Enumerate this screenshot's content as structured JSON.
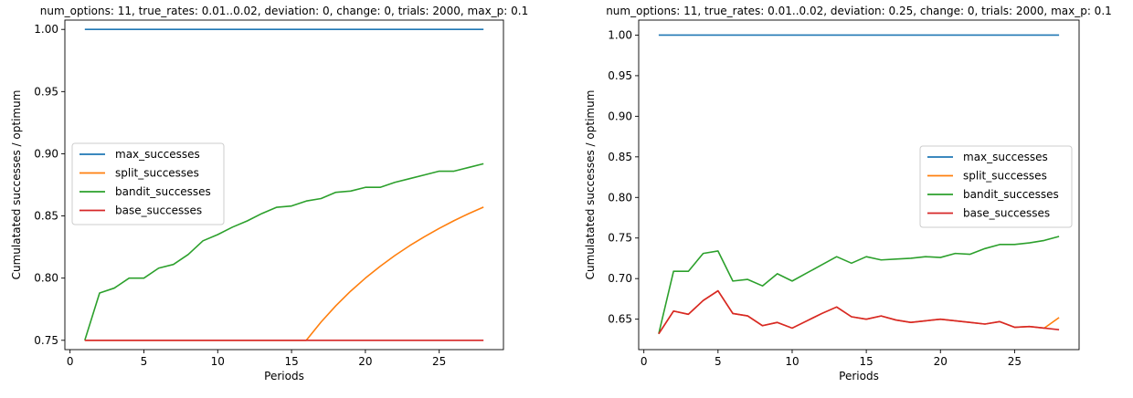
{
  "chart_data": [
    {
      "type": "line",
      "title": "num_options: 11, true_rates: 0.01..0.02, deviation: 0, change: 0, trials: 2000, max_p: 0.1",
      "xlabel": "Periods",
      "ylabel": "Cumulatated successes / optimum",
      "xlim": [
        -0.35,
        29.35
      ],
      "ylim": [
        0.7425,
        1.0075
      ],
      "xticks": [
        0,
        5,
        10,
        15,
        20,
        25
      ],
      "yticks": [
        0.75,
        0.8,
        0.85,
        0.9,
        0.95,
        1.0
      ],
      "ytick_labels": [
        "0.75",
        "0.80",
        "0.85",
        "0.90",
        "0.95",
        "1.00"
      ],
      "grid": false,
      "legend_position": "center-left",
      "x": [
        1,
        2,
        3,
        4,
        5,
        6,
        7,
        8,
        9,
        10,
        11,
        12,
        13,
        14,
        15,
        16,
        17,
        18,
        19,
        20,
        21,
        22,
        23,
        24,
        25,
        26,
        27,
        28
      ],
      "series": [
        {
          "name": "max_successes",
          "color": "#1f77b4",
          "values": [
            1,
            1,
            1,
            1,
            1,
            1,
            1,
            1,
            1,
            1,
            1,
            1,
            1,
            1,
            1,
            1,
            1,
            1,
            1,
            1,
            1,
            1,
            1,
            1,
            1,
            1,
            1,
            1
          ]
        },
        {
          "name": "split_successes",
          "color": "#ff7f0e",
          "values": [
            0.75,
            0.75,
            0.75,
            0.75,
            0.75,
            0.75,
            0.75,
            0.75,
            0.75,
            0.75,
            0.75,
            0.75,
            0.75,
            0.75,
            0.75,
            0.75,
            0.7647,
            0.7778,
            0.7895,
            0.8,
            0.8095,
            0.8182,
            0.8261,
            0.8333,
            0.84,
            0.8462,
            0.8519,
            0.8571
          ]
        },
        {
          "name": "bandit_successes",
          "color": "#2ca02c",
          "values": [
            0.75,
            0.788,
            0.792,
            0.8,
            0.8,
            0.808,
            0.811,
            0.819,
            0.83,
            0.835,
            0.841,
            0.846,
            0.852,
            0.857,
            0.858,
            0.862,
            0.864,
            0.869,
            0.87,
            0.873,
            0.873,
            0.877,
            0.88,
            0.883,
            0.886,
            0.886,
            0.889,
            0.892
          ]
        },
        {
          "name": "base_successes",
          "color": "#d62728",
          "values": [
            0.75,
            0.75,
            0.75,
            0.75,
            0.75,
            0.75,
            0.75,
            0.75,
            0.75,
            0.75,
            0.75,
            0.75,
            0.75,
            0.75,
            0.75,
            0.75,
            0.75,
            0.75,
            0.75,
            0.75,
            0.75,
            0.75,
            0.75,
            0.75,
            0.75,
            0.75,
            0.75,
            0.75
          ]
        }
      ]
    },
    {
      "type": "line",
      "title": "num_options: 11, true_rates: 0.01..0.02, deviation: 0.25, change: 0, trials: 2000, max_p: 0.1",
      "xlabel": "Periods",
      "ylabel": "Cumulatated successes / optimum",
      "xlim": [
        -0.35,
        29.35
      ],
      "ylim": [
        0.6125,
        1.0185
      ],
      "xticks": [
        0,
        5,
        10,
        15,
        20,
        25
      ],
      "yticks": [
        0.65,
        0.7,
        0.75,
        0.8,
        0.85,
        0.9,
        0.95,
        1.0
      ],
      "ytick_labels": [
        "0.65",
        "0.70",
        "0.75",
        "0.80",
        "0.85",
        "0.90",
        "0.95",
        "1.00"
      ],
      "grid": false,
      "legend_position": "center-right",
      "x": [
        1,
        2,
        3,
        4,
        5,
        6,
        7,
        8,
        9,
        10,
        11,
        12,
        13,
        14,
        15,
        16,
        17,
        18,
        19,
        20,
        21,
        22,
        23,
        24,
        25,
        26,
        27,
        28
      ],
      "series": [
        {
          "name": "max_successes",
          "color": "#1f77b4",
          "values": [
            1,
            1,
            1,
            1,
            1,
            1,
            1,
            1,
            1,
            1,
            1,
            1,
            1,
            1,
            1,
            1,
            1,
            1,
            1,
            1,
            1,
            1,
            1,
            1,
            1,
            1,
            1,
            1
          ]
        },
        {
          "name": "split_successes",
          "color": "#ff7f0e",
          "values": [
            0.632,
            0.66,
            0.656,
            0.673,
            0.685,
            0.657,
            0.654,
            0.642,
            0.646,
            0.639,
            0.648,
            0.657,
            0.665,
            0.653,
            0.65,
            0.654,
            0.649,
            0.646,
            0.648,
            0.65,
            0.648,
            0.646,
            0.644,
            0.647,
            0.64,
            0.641,
            0.639,
            0.652
          ]
        },
        {
          "name": "bandit_successes",
          "color": "#2ca02c",
          "values": [
            0.632,
            0.709,
            0.709,
            0.731,
            0.734,
            0.697,
            0.699,
            0.691,
            0.706,
            0.697,
            0.707,
            0.717,
            0.727,
            0.719,
            0.727,
            0.723,
            0.724,
            0.725,
            0.727,
            0.726,
            0.731,
            0.73,
            0.737,
            0.742,
            0.742,
            0.744,
            0.747,
            0.752
          ]
        },
        {
          "name": "base_successes",
          "color": "#d62728",
          "values": [
            0.632,
            0.66,
            0.656,
            0.673,
            0.685,
            0.657,
            0.654,
            0.642,
            0.646,
            0.639,
            0.648,
            0.657,
            0.665,
            0.653,
            0.65,
            0.654,
            0.649,
            0.646,
            0.648,
            0.65,
            0.648,
            0.646,
            0.644,
            0.647,
            0.64,
            0.641,
            0.639,
            0.637
          ]
        }
      ]
    }
  ]
}
